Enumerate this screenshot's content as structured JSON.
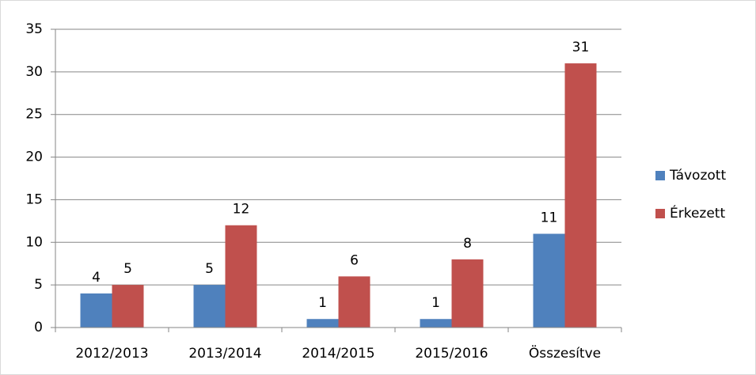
{
  "chart_data": {
    "type": "bar",
    "categories": [
      "2012/2013",
      "2013/2014",
      "2014/2015",
      "2015/2016",
      "Összesítve"
    ],
    "series": [
      {
        "name": "Távozott",
        "color": "#4f81bd",
        "values": [
          4,
          5,
          1,
          1,
          11
        ]
      },
      {
        "name": "Érkezett",
        "color": "#c0504d",
        "values": [
          5,
          12,
          6,
          8,
          31
        ]
      }
    ],
    "ylim": [
      0,
      35
    ],
    "yticks": [
      0,
      5,
      10,
      15,
      20,
      25,
      30,
      35
    ],
    "grid": true,
    "legend": "right"
  }
}
